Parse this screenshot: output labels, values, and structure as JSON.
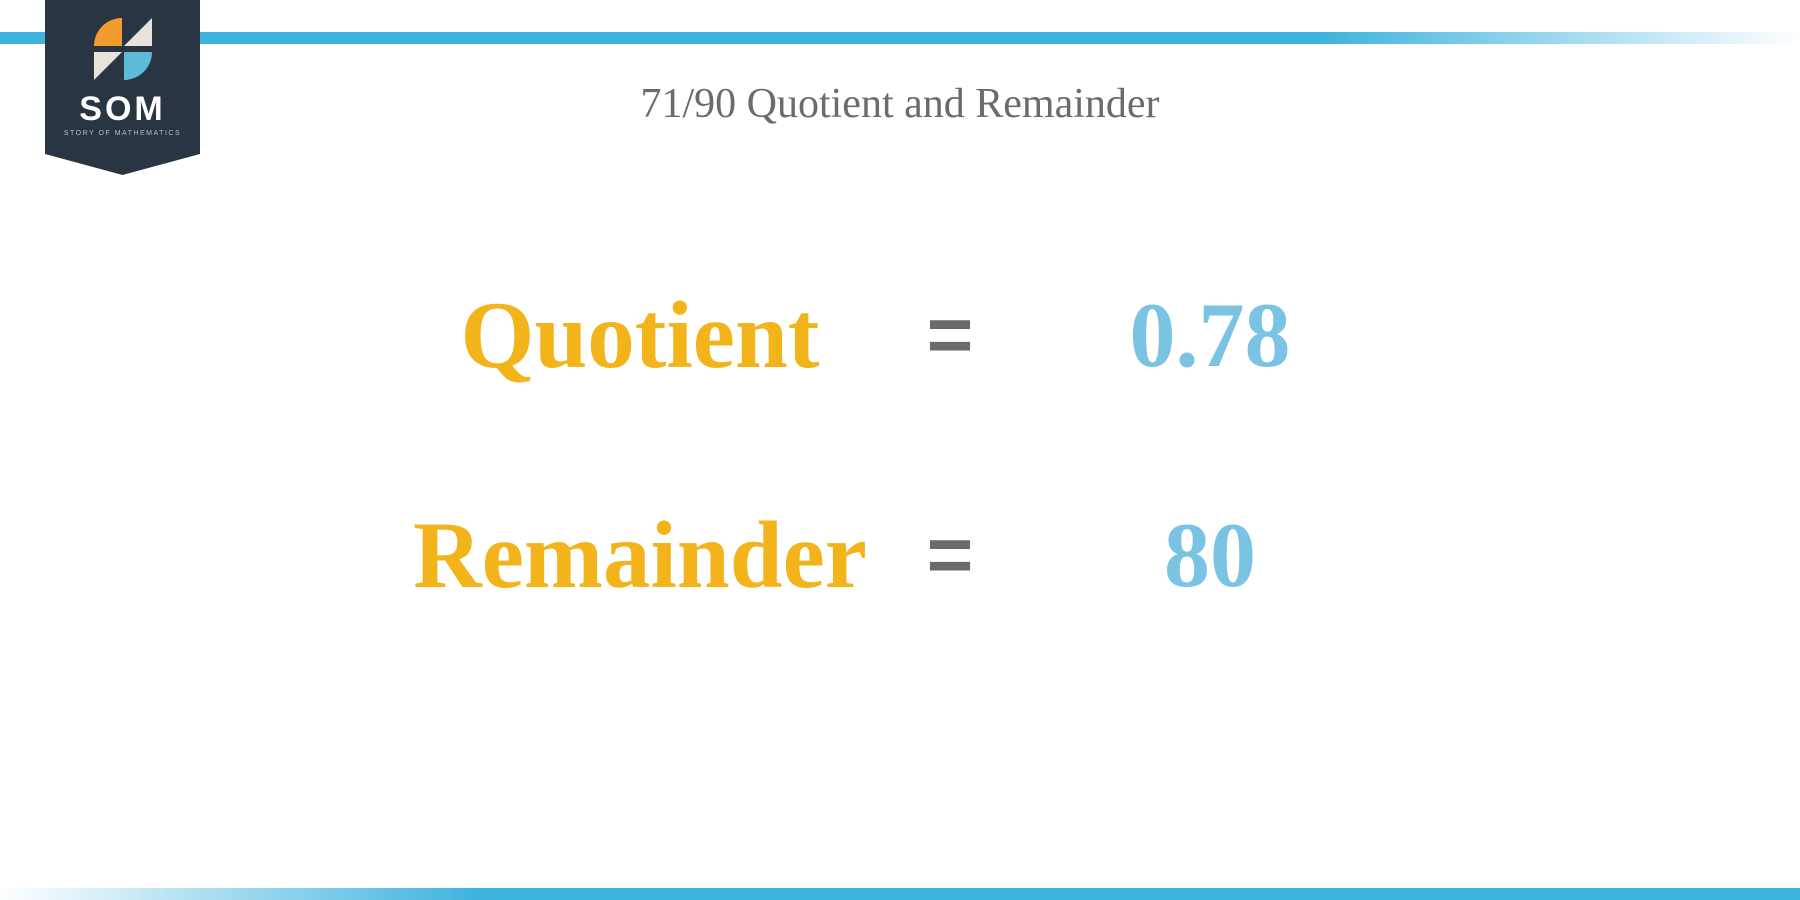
{
  "logo": {
    "text": "SOM",
    "subtext": "STORY OF MATHEMATICS"
  },
  "title": "71/90 Quotient and Remainder",
  "rows": [
    {
      "label": "Quotient",
      "value": "0.78"
    },
    {
      "label": "Remainder",
      "value": "80"
    }
  ],
  "equals": "=",
  "colors": {
    "label": "#f3b31a",
    "value": "#7ac3e3",
    "equals": "#6b6b6b",
    "title": "#6b6b6b",
    "accent": "#3eb3de",
    "badge_bg": "#2a3544"
  },
  "fontsize": {
    "title": 42,
    "label": 95,
    "value": 92,
    "equals": 80
  }
}
